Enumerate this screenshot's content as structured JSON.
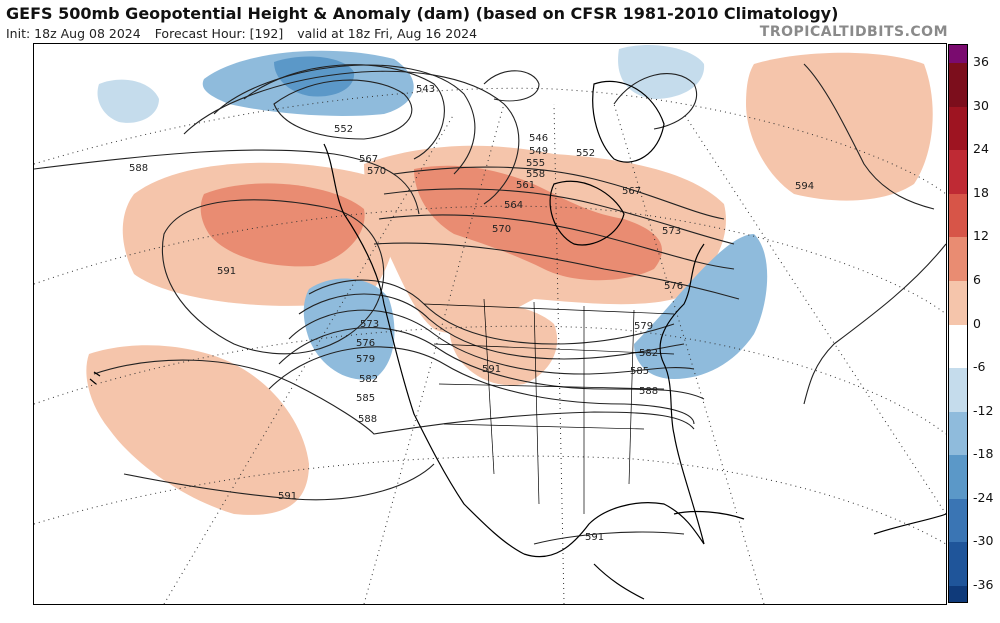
{
  "header": {
    "title": "GEFS 500mb Geopotential Height & Anomaly (dam) (based on CFSR 1981-2010 Climatology)",
    "init": "Init: 18z Aug 08 2024",
    "forecast_hour": "Forecast Hour: [192]",
    "valid": "valid at 18z Fri, Aug 16 2024",
    "brand": "TROPICALTIDBITS.COM"
  },
  "colorbar": {
    "labels": [
      "36",
      "30",
      "24",
      "18",
      "12",
      "6",
      "0",
      "-6",
      "-12",
      "-18",
      "-24",
      "-30",
      "-36"
    ],
    "colors": [
      "#7a0b6f",
      "#7c0e1c",
      "#9e1421",
      "#bf2a34",
      "#d75548",
      "#e98c72",
      "#f5c5ab",
      "#ffffff",
      "#c5dcec",
      "#8fbbdc",
      "#5b98c8",
      "#3a75b4",
      "#1f559a",
      "#0f3a7a"
    ]
  },
  "contours": {
    "labels": [
      {
        "text": "588"
      },
      {
        "text": "543"
      },
      {
        "text": "552"
      },
      {
        "text": "567"
      },
      {
        "text": "570"
      },
      {
        "text": "546"
      },
      {
        "text": "549"
      },
      {
        "text": "552"
      },
      {
        "text": "555"
      },
      {
        "text": "558"
      },
      {
        "text": "561"
      },
      {
        "text": "564"
      },
      {
        "text": "570"
      },
      {
        "text": "567"
      },
      {
        "text": "573"
      },
      {
        "text": "576"
      },
      {
        "text": "579"
      },
      {
        "text": "582"
      },
      {
        "text": "585"
      },
      {
        "text": "588"
      },
      {
        "text": "591"
      },
      {
        "text": "573"
      },
      {
        "text": "576"
      },
      {
        "text": "579"
      },
      {
        "text": "582"
      },
      {
        "text": "585"
      },
      {
        "text": "588"
      },
      {
        "text": "591"
      },
      {
        "text": "591"
      },
      {
        "text": "591"
      },
      {
        "text": "594"
      }
    ]
  }
}
